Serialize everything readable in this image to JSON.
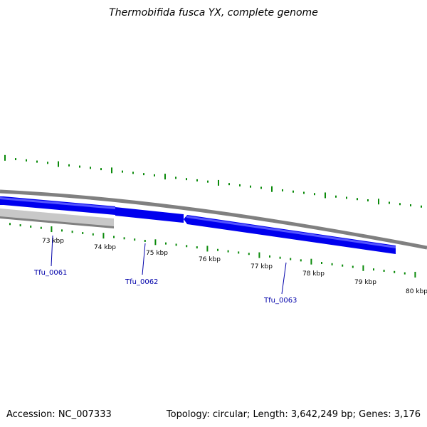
{
  "header": {
    "title": "Thermobifida fusca YX, complete genome"
  },
  "footer": {
    "accession": "Accession: NC_007333",
    "summary": "Topology: circular; Length: 3,642,249 bp; Genes: 3,176"
  },
  "map": {
    "colors": {
      "gene_forward": "#0000ee",
      "gene_highlight": "#5555ff",
      "gene_other": "#c0c0c0",
      "backbone": "#808080",
      "ticks": "#0a8a0a",
      "label_link": "#0000aa"
    },
    "position_ticks": [
      {
        "kbp": 73,
        "label": "73 kbp"
      },
      {
        "kbp": 74,
        "label": "74 kbp"
      },
      {
        "kbp": 75,
        "label": "75 kbp"
      },
      {
        "kbp": 76,
        "label": "76 kbp"
      },
      {
        "kbp": 77,
        "label": "77 kbp"
      },
      {
        "kbp": 78,
        "label": "78 kbp"
      },
      {
        "kbp": 79,
        "label": "79 kbp"
      },
      {
        "kbp": 80,
        "label": "80 kbp"
      }
    ],
    "genes": [
      {
        "id": "Tfu_0061",
        "label": "Tfu_0061"
      },
      {
        "id": "Tfu_0062",
        "label": "Tfu_0062"
      },
      {
        "id": "Tfu_0063",
        "label": "Tfu_0063"
      }
    ]
  }
}
